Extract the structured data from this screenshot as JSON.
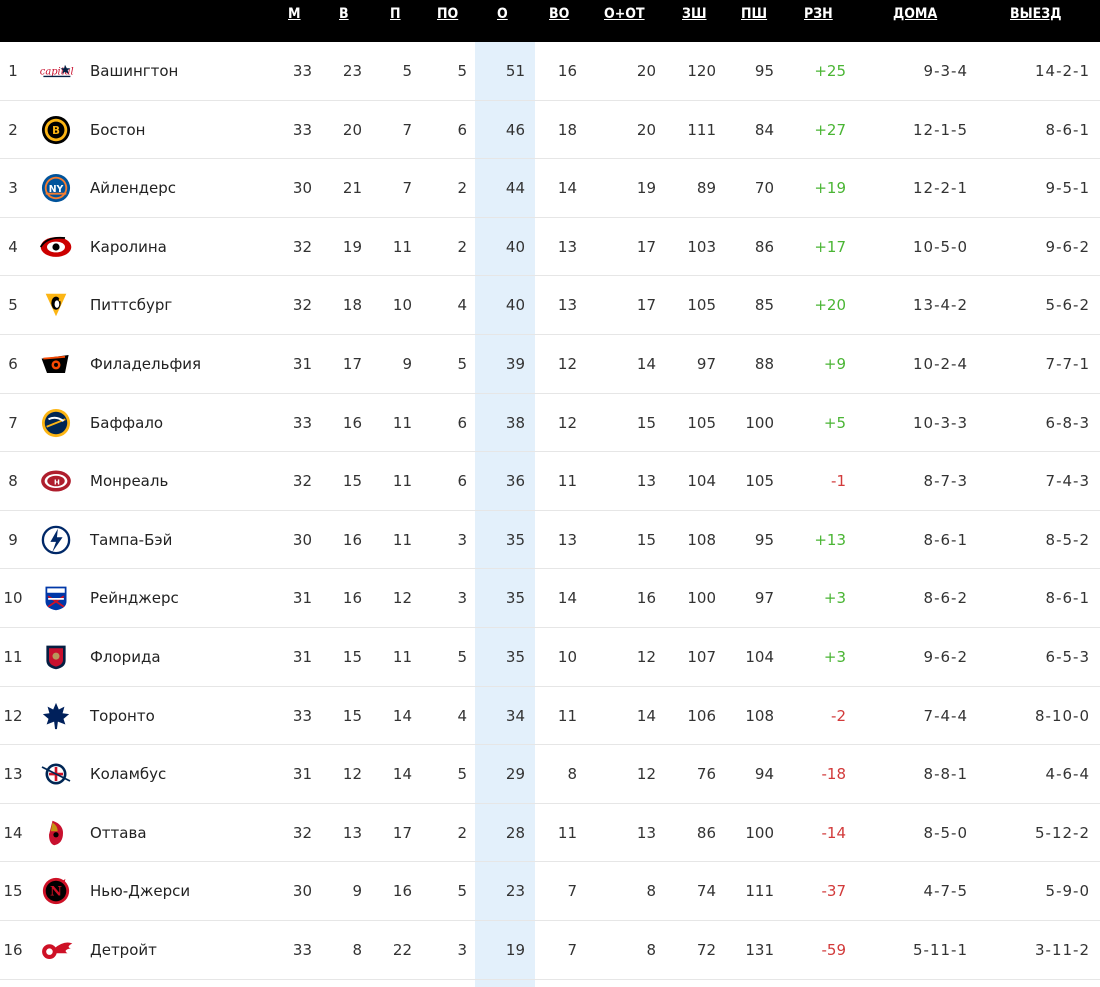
{
  "columns": {
    "gp": "М",
    "w": "В",
    "l": "П",
    "otl": "ПО",
    "pts": "О",
    "rw": "ВО",
    "row": "О+ОТ",
    "gf": "ЗШ",
    "ga": "ПШ",
    "diff": "РЗН",
    "home": "ДОМА",
    "away": "ВЫЕЗД"
  },
  "colors": {
    "header_bg": "#000000",
    "points_highlight": "#e3f0fb",
    "positive": "#4ab534",
    "negative": "#d23a3a"
  },
  "teams": [
    {
      "rank": "1",
      "name": "Вашингтон",
      "icon": "capitals-logo-icon",
      "gp": "33",
      "w": "23",
      "l": "5",
      "otl": "5",
      "pts": "51",
      "rw": "16",
      "row": "20",
      "gf": "120",
      "ga": "95",
      "diff": "+25",
      "home": "9-3-4",
      "away": "14-2-1"
    },
    {
      "rank": "2",
      "name": "Бостон",
      "icon": "bruins-logo-icon",
      "gp": "33",
      "w": "20",
      "l": "7",
      "otl": "6",
      "pts": "46",
      "rw": "18",
      "row": "20",
      "gf": "111",
      "ga": "84",
      "diff": "+27",
      "home": "12-1-5",
      "away": "8-6-1"
    },
    {
      "rank": "3",
      "name": "Айлендерс",
      "icon": "islanders-logo-icon",
      "gp": "30",
      "w": "21",
      "l": "7",
      "otl": "2",
      "pts": "44",
      "rw": "14",
      "row": "19",
      "gf": "89",
      "ga": "70",
      "diff": "+19",
      "home": "12-2-1",
      "away": "9-5-1"
    },
    {
      "rank": "4",
      "name": "Каролина",
      "icon": "hurricanes-logo-icon",
      "gp": "32",
      "w": "19",
      "l": "11",
      "otl": "2",
      "pts": "40",
      "rw": "13",
      "row": "17",
      "gf": "103",
      "ga": "86",
      "diff": "+17",
      "home": "10-5-0",
      "away": "9-6-2"
    },
    {
      "rank": "5",
      "name": "Питтсбург",
      "icon": "penguins-logo-icon",
      "gp": "32",
      "w": "18",
      "l": "10",
      "otl": "4",
      "pts": "40",
      "rw": "13",
      "row": "17",
      "gf": "105",
      "ga": "85",
      "diff": "+20",
      "home": "13-4-2",
      "away": "5-6-2"
    },
    {
      "rank": "6",
      "name": "Филадельфия",
      "icon": "flyers-logo-icon",
      "gp": "31",
      "w": "17",
      "l": "9",
      "otl": "5",
      "pts": "39",
      "rw": "12",
      "row": "14",
      "gf": "97",
      "ga": "88",
      "diff": "+9",
      "home": "10-2-4",
      "away": "7-7-1"
    },
    {
      "rank": "7",
      "name": "Баффало",
      "icon": "sabres-logo-icon",
      "gp": "33",
      "w": "16",
      "l": "11",
      "otl": "6",
      "pts": "38",
      "rw": "12",
      "row": "15",
      "gf": "105",
      "ga": "100",
      "diff": "+5",
      "home": "10-3-3",
      "away": "6-8-3"
    },
    {
      "rank": "8",
      "name": "Монреаль",
      "icon": "canadiens-logo-icon",
      "gp": "32",
      "w": "15",
      "l": "11",
      "otl": "6",
      "pts": "36",
      "rw": "11",
      "row": "13",
      "gf": "104",
      "ga": "105",
      "diff": "-1",
      "home": "8-7-3",
      "away": "7-4-3"
    },
    {
      "rank": "9",
      "name": "Тампа-Бэй",
      "icon": "lightning-logo-icon",
      "gp": "30",
      "w": "16",
      "l": "11",
      "otl": "3",
      "pts": "35",
      "rw": "13",
      "row": "15",
      "gf": "108",
      "ga": "95",
      "diff": "+13",
      "home": "8-6-1",
      "away": "8-5-2"
    },
    {
      "rank": "10",
      "name": "Рейнджерс",
      "icon": "rangers-logo-icon",
      "gp": "31",
      "w": "16",
      "l": "12",
      "otl": "3",
      "pts": "35",
      "rw": "14",
      "row": "16",
      "gf": "100",
      "ga": "97",
      "diff": "+3",
      "home": "8-6-2",
      "away": "8-6-1"
    },
    {
      "rank": "11",
      "name": "Флорида",
      "icon": "panthers-logo-icon",
      "gp": "31",
      "w": "15",
      "l": "11",
      "otl": "5",
      "pts": "35",
      "rw": "10",
      "row": "12",
      "gf": "107",
      "ga": "104",
      "diff": "+3",
      "home": "9-6-2",
      "away": "6-5-3"
    },
    {
      "rank": "12",
      "name": "Торонто",
      "icon": "maple-leafs-logo-icon",
      "gp": "33",
      "w": "15",
      "l": "14",
      "otl": "4",
      "pts": "34",
      "rw": "11",
      "row": "14",
      "gf": "106",
      "ga": "108",
      "diff": "-2",
      "home": "7-4-4",
      "away": "8-10-0"
    },
    {
      "rank": "13",
      "name": "Коламбус",
      "icon": "blue-jackets-logo-icon",
      "gp": "31",
      "w": "12",
      "l": "14",
      "otl": "5",
      "pts": "29",
      "rw": "8",
      "row": "12",
      "gf": "76",
      "ga": "94",
      "diff": "-18",
      "home": "8-8-1",
      "away": "4-6-4"
    },
    {
      "rank": "14",
      "name": "Оттава",
      "icon": "senators-logo-icon",
      "gp": "32",
      "w": "13",
      "l": "17",
      "otl": "2",
      "pts": "28",
      "rw": "11",
      "row": "13",
      "gf": "86",
      "ga": "100",
      "diff": "-14",
      "home": "8-5-0",
      "away": "5-12-2"
    },
    {
      "rank": "15",
      "name": "Нью-Джерси",
      "icon": "devils-logo-icon",
      "gp": "30",
      "w": "9",
      "l": "16",
      "otl": "5",
      "pts": "23",
      "rw": "7",
      "row": "8",
      "gf": "74",
      "ga": "111",
      "diff": "-37",
      "home": "4-7-5",
      "away": "5-9-0"
    },
    {
      "rank": "16",
      "name": "Детройт",
      "icon": "red-wings-logo-icon",
      "gp": "33",
      "w": "8",
      "l": "22",
      "otl": "3",
      "pts": "19",
      "rw": "7",
      "row": "8",
      "gf": "72",
      "ga": "131",
      "diff": "-59",
      "home": "5-11-1",
      "away": "3-11-2"
    }
  ]
}
